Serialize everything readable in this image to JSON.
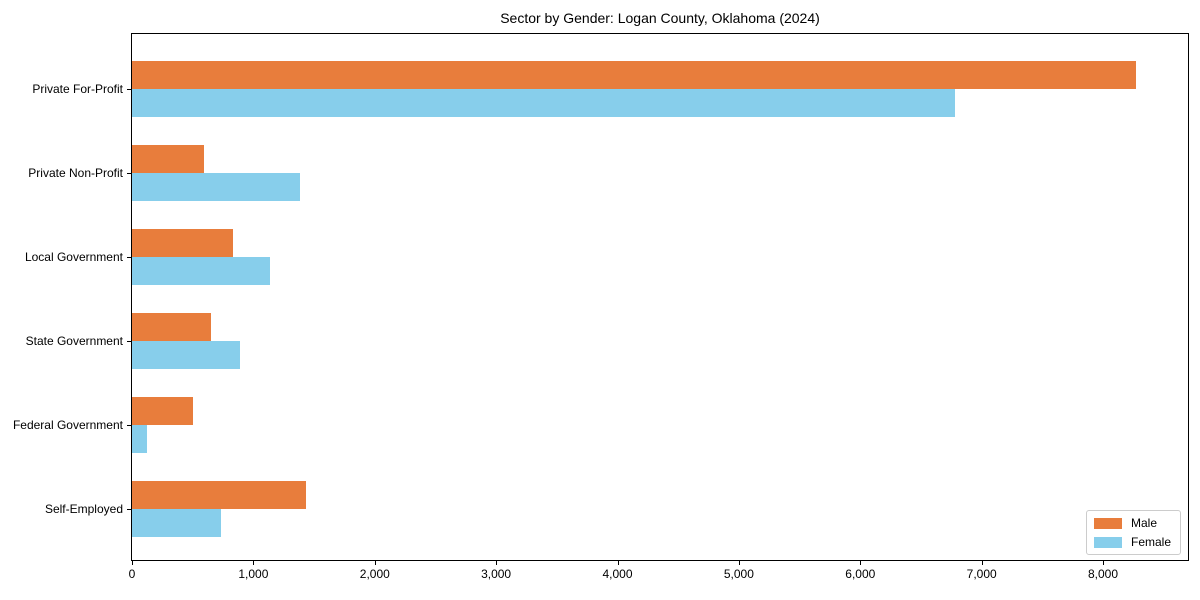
{
  "chart_data": {
    "type": "bar",
    "orientation": "horizontal",
    "title": "Sector by Gender: Logan County, Oklahoma (2024)",
    "xlabel": "",
    "ylabel": "",
    "grid": false,
    "legend_position": "lower right",
    "categories": [
      "Private For-Profit",
      "Private Non-Profit",
      "Local Government",
      "State Government",
      "Federal Government",
      "Self-Employed"
    ],
    "series": [
      {
        "name": "Male",
        "color": "#e87d3c",
        "values": [
          8270,
          590,
          830,
          650,
          500,
          1430
        ]
      },
      {
        "name": "Female",
        "color": "#87ceeb",
        "values": [
          6780,
          1380,
          1140,
          890,
          120,
          730
        ]
      }
    ],
    "xlim": [
      0,
      8700
    ],
    "xticks": [
      0,
      1000,
      2000,
      3000,
      4000,
      5000,
      6000,
      7000,
      8000
    ],
    "xtick_labels": [
      "0",
      "1,000",
      "2,000",
      "3,000",
      "4,000",
      "5,000",
      "6,000",
      "7,000",
      "8,000"
    ]
  },
  "colors": {
    "male": "#e87d3c",
    "female": "#87ceeb",
    "spine": "#000000",
    "legend_border": "#cccccc",
    "background": "#ffffff"
  }
}
